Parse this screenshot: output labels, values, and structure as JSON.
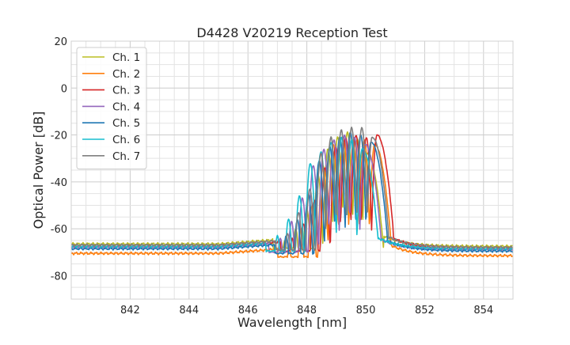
{
  "chart_data": {
    "type": "line",
    "title": "D4428 V20219 Reception Test",
    "xlabel": "Wavelength [nm]",
    "ylabel": "Optical Power [dB]",
    "xlim": [
      840.0,
      855.0
    ],
    "ylim": [
      -90,
      20
    ],
    "x_major_ticks": [
      842,
      844,
      846,
      848,
      850,
      852,
      854
    ],
    "x_minor_step": 0.5,
    "y_major_ticks": [
      -80,
      -60,
      -40,
      -20,
      0,
      20
    ],
    "y_minor_step": 5,
    "grid": true,
    "legend_position": "top-left",
    "series": [
      {
        "name": "Ch. 1",
        "color": "#bcbd22",
        "baseline": -66.5,
        "peaks": [
          {
            "x": 847.25,
            "y": -65
          },
          {
            "x": 847.62,
            "y": -60
          },
          {
            "x": 848.0,
            "y": -52
          },
          {
            "x": 848.38,
            "y": -37
          },
          {
            "x": 848.72,
            "y": -26
          },
          {
            "x": 849.05,
            "y": -21
          },
          {
            "x": 849.38,
            "y": -19
          },
          {
            "x": 849.72,
            "y": -22
          },
          {
            "x": 850.05,
            "y": -28
          }
        ]
      },
      {
        "name": "Ch. 2",
        "color": "#ff7f0e",
        "baseline": -70.5,
        "peaks": [
          {
            "x": 847.4,
            "y": -68
          },
          {
            "x": 847.8,
            "y": -60
          },
          {
            "x": 848.18,
            "y": -50
          },
          {
            "x": 848.55,
            "y": -33
          },
          {
            "x": 848.9,
            "y": -24
          },
          {
            "x": 849.25,
            "y": -22
          },
          {
            "x": 849.6,
            "y": -21
          },
          {
            "x": 849.95,
            "y": -22
          },
          {
            "x": 850.3,
            "y": -24
          }
        ]
      },
      {
        "name": "Ch. 3",
        "color": "#d62728",
        "baseline": -67.5,
        "peaks": [
          {
            "x": 847.5,
            "y": -64
          },
          {
            "x": 847.88,
            "y": -58
          },
          {
            "x": 848.25,
            "y": -48
          },
          {
            "x": 848.62,
            "y": -34
          },
          {
            "x": 848.98,
            "y": -25
          },
          {
            "x": 849.32,
            "y": -21
          },
          {
            "x": 849.67,
            "y": -20
          },
          {
            "x": 850.02,
            "y": -21
          },
          {
            "x": 850.38,
            "y": -20
          }
        ]
      },
      {
        "name": "Ch. 4",
        "color": "#9467bd",
        "baseline": -68.0,
        "peaks": [
          {
            "x": 847.1,
            "y": -64
          },
          {
            "x": 847.48,
            "y": -57
          },
          {
            "x": 847.85,
            "y": -47
          },
          {
            "x": 848.22,
            "y": -33
          },
          {
            "x": 848.58,
            "y": -26
          },
          {
            "x": 848.92,
            "y": -22
          },
          {
            "x": 849.28,
            "y": -20
          },
          {
            "x": 849.62,
            "y": -21
          },
          {
            "x": 849.97,
            "y": -24
          }
        ]
      },
      {
        "name": "Ch. 5",
        "color": "#1f77b4",
        "baseline": -68.5,
        "peaks": [
          {
            "x": 847.3,
            "y": -63
          },
          {
            "x": 847.68,
            "y": -56
          },
          {
            "x": 848.05,
            "y": -45
          },
          {
            "x": 848.42,
            "y": -31
          },
          {
            "x": 848.78,
            "y": -25
          },
          {
            "x": 849.12,
            "y": -21
          },
          {
            "x": 849.48,
            "y": -19
          },
          {
            "x": 849.83,
            "y": -20
          },
          {
            "x": 850.18,
            "y": -23
          }
        ]
      },
      {
        "name": "Ch. 6",
        "color": "#17becf",
        "baseline": -67.5,
        "peaks": [
          {
            "x": 847.0,
            "y": -63
          },
          {
            "x": 847.38,
            "y": -56
          },
          {
            "x": 847.75,
            "y": -46
          },
          {
            "x": 848.12,
            "y": -32
          },
          {
            "x": 848.48,
            "y": -27
          },
          {
            "x": 848.82,
            "y": -23
          },
          {
            "x": 849.18,
            "y": -21
          },
          {
            "x": 849.52,
            "y": -22
          },
          {
            "x": 849.88,
            "y": -26
          }
        ]
      },
      {
        "name": "Ch. 7",
        "color": "#7f7f7f",
        "baseline": -67.0,
        "peaks": [
          {
            "x": 847.35,
            "y": -62
          },
          {
            "x": 847.72,
            "y": -53
          },
          {
            "x": 848.1,
            "y": -43
          },
          {
            "x": 848.48,
            "y": -28
          },
          {
            "x": 848.82,
            "y": -21
          },
          {
            "x": 849.17,
            "y": -18
          },
          {
            "x": 849.52,
            "y": -17
          },
          {
            "x": 849.87,
            "y": -17
          },
          {
            "x": 850.22,
            "y": -21
          }
        ]
      }
    ]
  }
}
